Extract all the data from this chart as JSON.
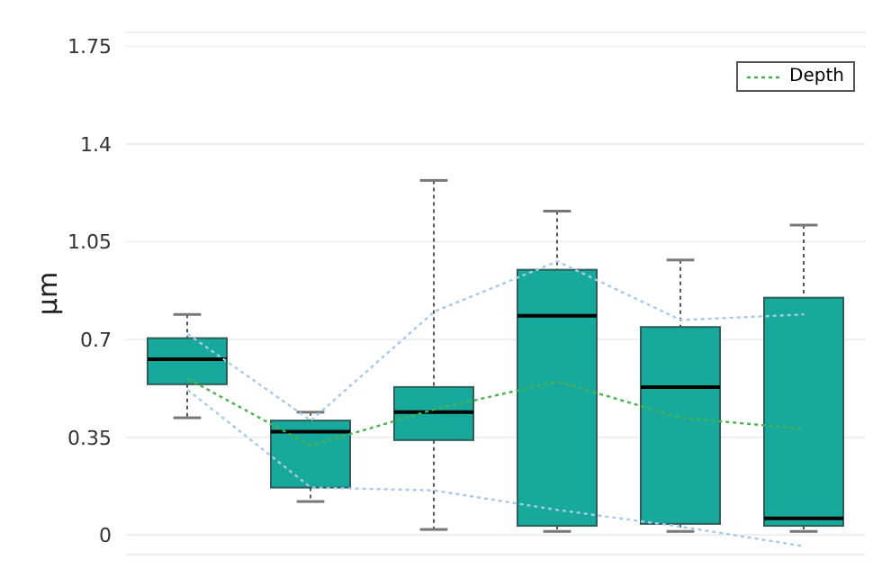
{
  "chart_data": {
    "type": "box",
    "ylabel": "µm",
    "categories": [
      null,
      null,
      null,
      null,
      null,
      null
    ],
    "color": "#17a99b",
    "boxes": [
      {
        "low": 0.42,
        "q1": 0.54,
        "median": 0.63,
        "q3": 0.705,
        "high": 0.79
      },
      {
        "low": 0.12,
        "q1": 0.17,
        "median": 0.37,
        "q3": 0.41,
        "high": 0.44
      },
      {
        "low": 0.02,
        "q1": 0.34,
        "median": 0.44,
        "q3": 0.53,
        "high": 1.27
      },
      {
        "low": 0.013,
        "q1": 0.033,
        "median": 0.785,
        "q3": 0.95,
        "high": 1.16
      },
      {
        "low": 0.013,
        "q1": 0.04,
        "median": 0.53,
        "q3": 0.745,
        "high": 0.985
      },
      {
        "low": 0.013,
        "q1": 0.033,
        "median": 0.06,
        "q3": 0.85,
        "high": 1.11
      }
    ],
    "series": [
      {
        "type": "line",
        "name": "Depth",
        "color": "#4caf50",
        "values": [
          0.56,
          0.32,
          0.45,
          0.55,
          0.42,
          0.38
        ]
      },
      {
        "type": "line",
        "color": "#a9c9ea",
        "values": [
          0.72,
          0.41,
          0.8,
          0.98,
          0.77,
          0.79
        ]
      },
      {
        "type": "line",
        "color": "#a9c9ea",
        "values": [
          0.52,
          0.17,
          0.16,
          0.09,
          0.03,
          -0.04
        ]
      }
    ],
    "ylim": [
      -0.07,
      1.8
    ],
    "yticks": [
      0,
      0.35,
      0.7,
      1.05,
      1.4,
      1.75
    ],
    "grid": "y",
    "legend": "top right",
    "marker": "none",
    "line_style": "dotted"
  }
}
